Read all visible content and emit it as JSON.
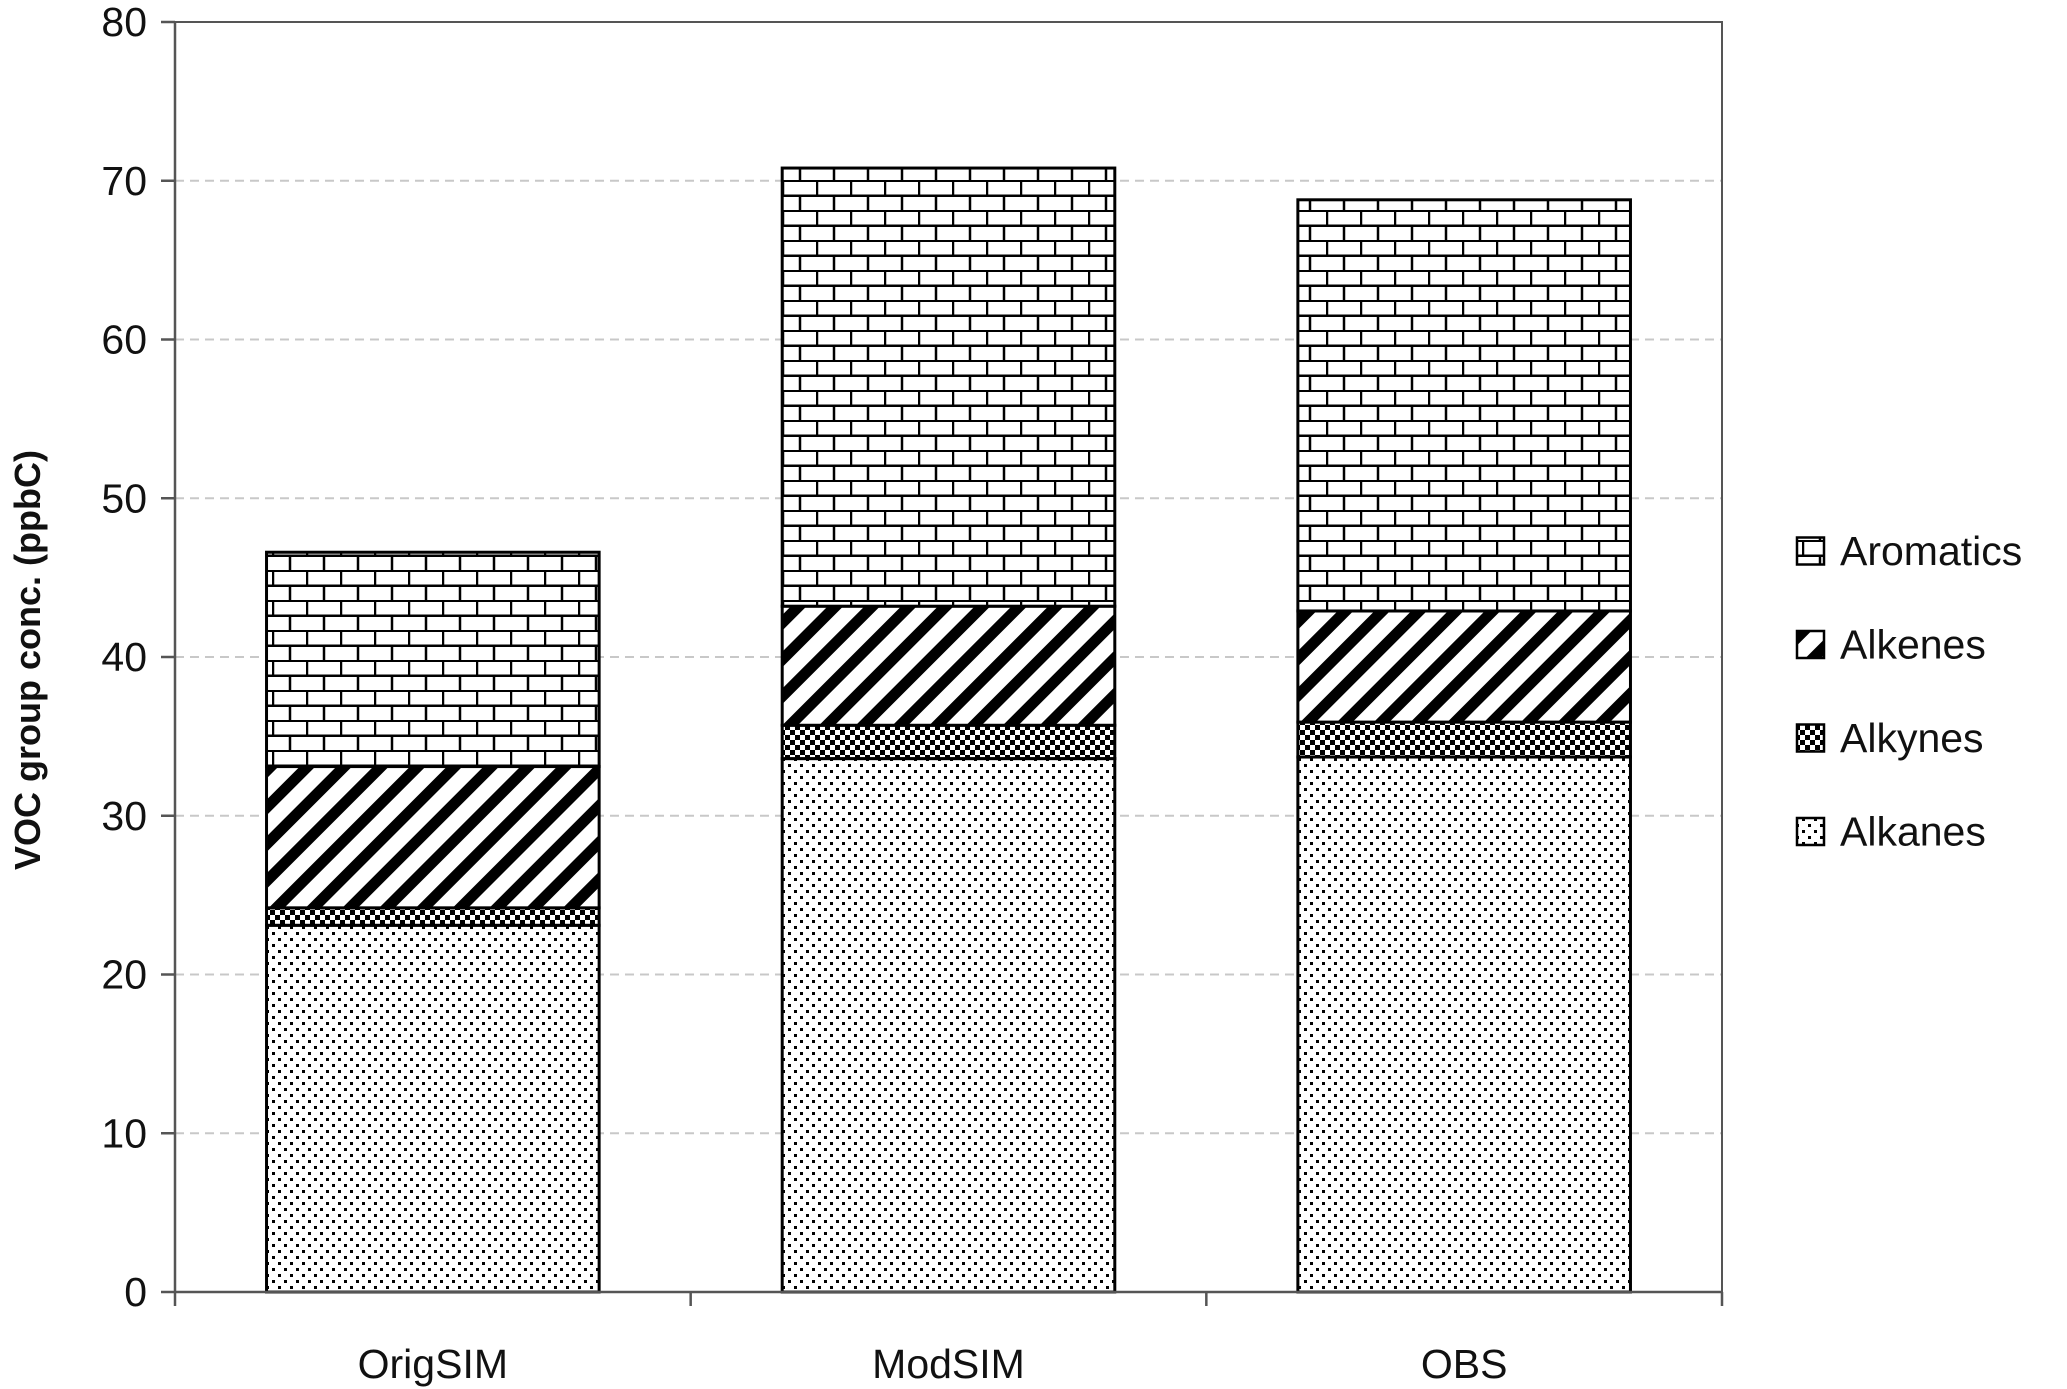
{
  "chart_data": {
    "type": "bar",
    "stacked": true,
    "categories": [
      "OrigSIM",
      "ModSIM",
      "OBS"
    ],
    "series": [
      {
        "name": "Alkanes",
        "pattern": "dots",
        "values": [
          23.1,
          33.6,
          33.7
        ]
      },
      {
        "name": "Alkynes",
        "pattern": "checker",
        "values": [
          1.1,
          2.1,
          2.2
        ]
      },
      {
        "name": "Alkenes",
        "pattern": "diagonal",
        "values": [
          8.9,
          7.5,
          7.0
        ]
      },
      {
        "name": "Aromatics",
        "pattern": "brick",
        "values": [
          13.5,
          27.6,
          25.9
        ]
      }
    ],
    "legend_order": [
      "Aromatics",
      "Alkenes",
      "Alkynes",
      "Alkanes"
    ],
    "ylabel": "VOC group conc. (ppbC)",
    "xlabel": "",
    "ylim": [
      0,
      80
    ],
    "yticks": [
      0,
      10,
      20,
      30,
      40,
      50,
      60,
      70,
      80
    ],
    "grid": "horizontal dashed",
    "legend_position": "right",
    "colors": {
      "ink": "#000000",
      "fill": "#ffffff",
      "grid": "#c8c8c8"
    }
  }
}
